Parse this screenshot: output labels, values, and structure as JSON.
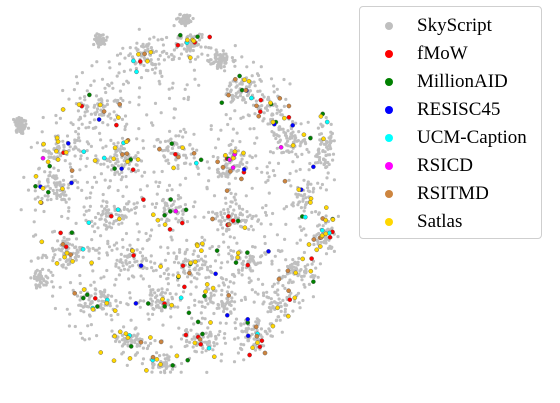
{
  "chart_data": {
    "type": "scatter",
    "title": "",
    "xlabel": "",
    "ylabel": "",
    "axes_visible": false,
    "grid": false,
    "legend_position": "top-right",
    "series": [
      {
        "name": "SkyScript",
        "color": "#bfbfbf",
        "approx_points": 2600
      },
      {
        "name": "fMoW",
        "color": "#ff0000"
      },
      {
        "name": "MillionAID",
        "color": "#008000"
      },
      {
        "name": "RESISC45",
        "color": "#0000ff"
      },
      {
        "name": "UCM-Caption",
        "color": "#00ffff"
      },
      {
        "name": "RSICD",
        "color": "#ff00ff"
      },
      {
        "name": "RSITMD",
        "color": "#cd853f"
      },
      {
        "name": "Satlas",
        "color": "#ffd700"
      }
    ]
  }
}
